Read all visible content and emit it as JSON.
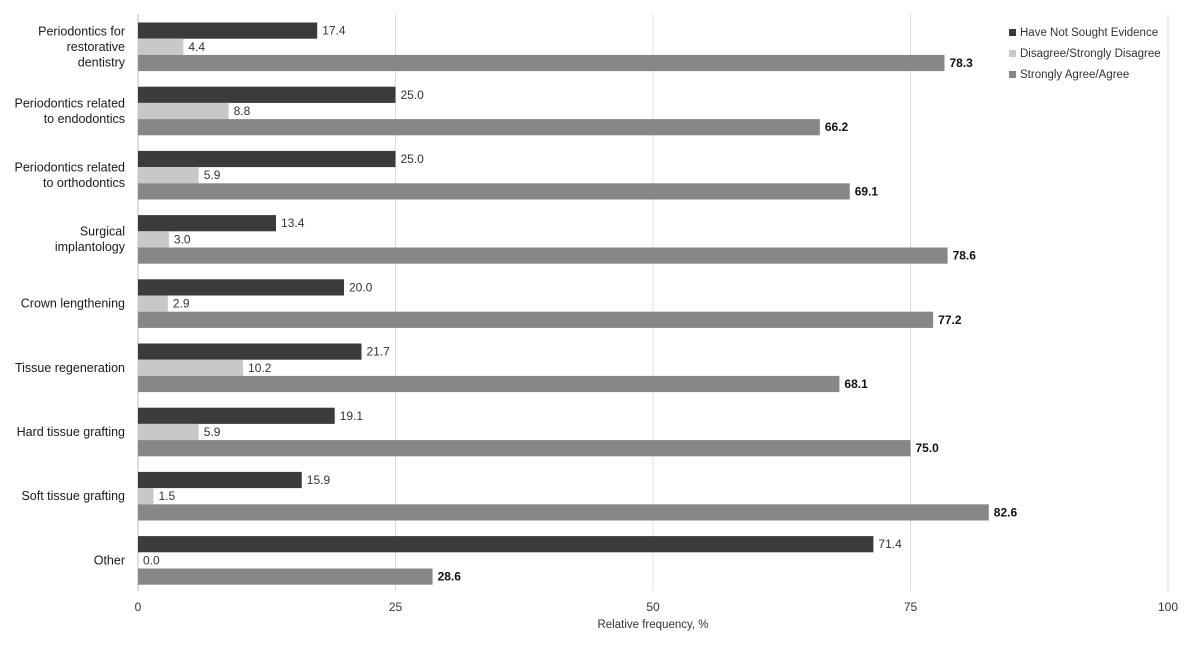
{
  "chart_data": {
    "type": "bar",
    "orientation": "horizontal",
    "categories": [
      [
        "Periodontics for",
        "restorative",
        "dentistry"
      ],
      [
        "Periodontics related",
        "to endodontics"
      ],
      [
        "Periodontics related",
        "to orthodontics"
      ],
      [
        "Surgical",
        "implantology"
      ],
      [
        "Crown lengthening"
      ],
      [
        "Tissue regeneration"
      ],
      [
        "Hard tissue grafting"
      ],
      [
        "Soft tissue grafting"
      ],
      [
        "Other"
      ]
    ],
    "series": [
      {
        "name": "Have Not Sought Evidence",
        "color": "#3b3b3b",
        "values": [
          17.4,
          25.0,
          25.0,
          13.4,
          20.0,
          21.7,
          19.1,
          15.9,
          71.4
        ],
        "labels": [
          "17.4",
          "25.0",
          "25.0",
          "13.4",
          "20.0",
          "21.7",
          "19.1",
          "15.9",
          "71.4"
        ]
      },
      {
        "name": "Disagree/Strongly Disagree",
        "color": "#c8c8c8",
        "values": [
          4.4,
          8.8,
          5.9,
          3.0,
          2.9,
          10.2,
          5.9,
          1.5,
          0.0
        ],
        "labels": [
          "4.4",
          "8.8",
          "5.9",
          "3.0",
          "2.9",
          "10.2",
          "5.9",
          "1.5",
          "0.0"
        ]
      },
      {
        "name": "Strongly Agree/Agree",
        "color": "#878787",
        "values": [
          78.3,
          66.2,
          69.1,
          78.6,
          77.2,
          68.1,
          75.0,
          82.6,
          28.6
        ],
        "labels": [
          "78.3",
          "66.2",
          "69.1",
          "78.6",
          "77.2",
          "68.1",
          "75.0",
          "82.6",
          "28.6"
        ]
      }
    ],
    "xlabel": "Relative frequency, %",
    "ylabel": "",
    "xlim": [
      0,
      100
    ],
    "xticks": [
      "0",
      "25",
      "50",
      "75",
      "100"
    ],
    "grid": "vertical",
    "legend_position": "top-right"
  }
}
